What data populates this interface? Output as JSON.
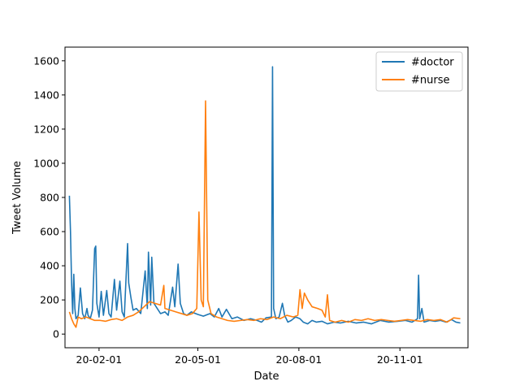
{
  "chart_data": {
    "type": "line",
    "xlabel": "Date",
    "ylabel": "Tweet Volume",
    "xlim": [
      "2020-01-01",
      "2021-01-02"
    ],
    "ylim": [
      -80,
      1680
    ],
    "x_ticks": [
      {
        "date": "2020-02-01",
        "label": "20-02-01"
      },
      {
        "date": "2020-05-01",
        "label": "20-05-01"
      },
      {
        "date": "2020-08-01",
        "label": "20-08-01"
      },
      {
        "date": "2020-11-01",
        "label": "20-11-01"
      }
    ],
    "y_ticks": [
      0,
      200,
      400,
      600,
      800,
      1000,
      1200,
      1400,
      1600
    ],
    "legend_position": "top-right",
    "grid": false,
    "series": [
      {
        "name": "#doctor",
        "color": "#1f77b4",
        "points": [
          [
            "2020-01-05",
            810
          ],
          [
            "2020-01-06",
            600
          ],
          [
            "2020-01-07",
            300
          ],
          [
            "2020-01-08",
            120
          ],
          [
            "2020-01-09",
            350
          ],
          [
            "2020-01-10",
            150
          ],
          [
            "2020-01-11",
            90
          ],
          [
            "2020-01-13",
            110
          ],
          [
            "2020-01-15",
            270
          ],
          [
            "2020-01-17",
            120
          ],
          [
            "2020-01-19",
            90
          ],
          [
            "2020-01-21",
            150
          ],
          [
            "2020-01-22",
            110
          ],
          [
            "2020-01-24",
            90
          ],
          [
            "2020-01-26",
            140
          ],
          [
            "2020-01-28",
            500
          ],
          [
            "2020-01-29",
            515
          ],
          [
            "2020-01-30",
            180
          ],
          [
            "2020-02-01",
            100
          ],
          [
            "2020-02-03",
            250
          ],
          [
            "2020-02-05",
            110
          ],
          [
            "2020-02-08",
            255
          ],
          [
            "2020-02-10",
            120
          ],
          [
            "2020-02-12",
            100
          ],
          [
            "2020-02-15",
            320
          ],
          [
            "2020-02-17",
            140
          ],
          [
            "2020-02-20",
            310
          ],
          [
            "2020-02-22",
            130
          ],
          [
            "2020-02-24",
            100
          ],
          [
            "2020-02-27",
            530
          ],
          [
            "2020-02-28",
            300
          ],
          [
            "2020-03-01",
            215
          ],
          [
            "2020-03-03",
            140
          ],
          [
            "2020-03-06",
            150
          ],
          [
            "2020-03-10",
            120
          ],
          [
            "2020-03-14",
            370
          ],
          [
            "2020-03-16",
            150
          ],
          [
            "2020-03-17",
            480
          ],
          [
            "2020-03-19",
            170
          ],
          [
            "2020-03-20",
            450
          ],
          [
            "2020-03-22",
            180
          ],
          [
            "2020-03-25",
            150
          ],
          [
            "2020-03-28",
            120
          ],
          [
            "2020-04-01",
            130
          ],
          [
            "2020-04-04",
            110
          ],
          [
            "2020-04-08",
            275
          ],
          [
            "2020-04-10",
            160
          ],
          [
            "2020-04-13",
            410
          ],
          [
            "2020-04-15",
            180
          ],
          [
            "2020-04-18",
            120
          ],
          [
            "2020-04-21",
            110
          ],
          [
            "2020-04-25",
            130
          ],
          [
            "2020-05-01",
            115
          ],
          [
            "2020-05-06",
            105
          ],
          [
            "2020-05-12",
            120
          ],
          [
            "2020-05-16",
            100
          ],
          [
            "2020-05-20",
            150
          ],
          [
            "2020-05-23",
            100
          ],
          [
            "2020-05-27",
            145
          ],
          [
            "2020-06-01",
            90
          ],
          [
            "2020-06-06",
            100
          ],
          [
            "2020-06-12",
            80
          ],
          [
            "2020-06-18",
            90
          ],
          [
            "2020-06-24",
            80
          ],
          [
            "2020-06-28",
            70
          ],
          [
            "2020-07-02",
            95
          ],
          [
            "2020-07-07",
            100
          ],
          [
            "2020-07-08",
            1565
          ],
          [
            "2020-07-09",
            150
          ],
          [
            "2020-07-11",
            90
          ],
          [
            "2020-07-14",
            100
          ],
          [
            "2020-07-17",
            180
          ],
          [
            "2020-07-19",
            110
          ],
          [
            "2020-07-22",
            70
          ],
          [
            "2020-07-25",
            80
          ],
          [
            "2020-07-29",
            100
          ],
          [
            "2020-08-02",
            90
          ],
          [
            "2020-08-05",
            70
          ],
          [
            "2020-08-09",
            60
          ],
          [
            "2020-08-13",
            80
          ],
          [
            "2020-08-17",
            70
          ],
          [
            "2020-08-22",
            75
          ],
          [
            "2020-08-27",
            60
          ],
          [
            "2020-09-02",
            70
          ],
          [
            "2020-09-08",
            65
          ],
          [
            "2020-09-15",
            75
          ],
          [
            "2020-09-22",
            65
          ],
          [
            "2020-09-29",
            70
          ],
          [
            "2020-10-06",
            60
          ],
          [
            "2020-10-14",
            80
          ],
          [
            "2020-10-22",
            70
          ],
          [
            "2020-10-30",
            75
          ],
          [
            "2020-11-06",
            80
          ],
          [
            "2020-11-12",
            70
          ],
          [
            "2020-11-17",
            90
          ],
          [
            "2020-11-18",
            345
          ],
          [
            "2020-11-19",
            90
          ],
          [
            "2020-11-21",
            150
          ],
          [
            "2020-11-23",
            70
          ],
          [
            "2020-11-28",
            80
          ],
          [
            "2020-12-03",
            75
          ],
          [
            "2020-12-08",
            80
          ],
          [
            "2020-12-13",
            70
          ],
          [
            "2020-12-18",
            85
          ],
          [
            "2020-12-22",
            70
          ],
          [
            "2020-12-26",
            65
          ]
        ]
      },
      {
        "name": "#nurse",
        "color": "#ff7f0e",
        "points": [
          [
            "2020-01-05",
            130
          ],
          [
            "2020-01-07",
            90
          ],
          [
            "2020-01-09",
            60
          ],
          [
            "2020-01-11",
            40
          ],
          [
            "2020-01-13",
            100
          ],
          [
            "2020-01-16",
            90
          ],
          [
            "2020-01-20",
            100
          ],
          [
            "2020-01-24",
            90
          ],
          [
            "2020-01-28",
            80
          ],
          [
            "2020-02-02",
            80
          ],
          [
            "2020-02-07",
            75
          ],
          [
            "2020-02-12",
            85
          ],
          [
            "2020-02-17",
            90
          ],
          [
            "2020-02-22",
            80
          ],
          [
            "2020-02-27",
            100
          ],
          [
            "2020-03-03",
            110
          ],
          [
            "2020-03-08",
            130
          ],
          [
            "2020-03-13",
            160
          ],
          [
            "2020-03-18",
            190
          ],
          [
            "2020-03-23",
            180
          ],
          [
            "2020-03-28",
            170
          ],
          [
            "2020-03-31",
            285
          ],
          [
            "2020-04-01",
            150
          ],
          [
            "2020-04-06",
            140
          ],
          [
            "2020-04-11",
            130
          ],
          [
            "2020-04-16",
            120
          ],
          [
            "2020-04-21",
            110
          ],
          [
            "2020-04-26",
            120
          ],
          [
            "2020-04-30",
            150
          ],
          [
            "2020-05-02",
            715
          ],
          [
            "2020-05-04",
            200
          ],
          [
            "2020-05-06",
            160
          ],
          [
            "2020-05-08",
            1365
          ],
          [
            "2020-05-10",
            200
          ],
          [
            "2020-05-13",
            120
          ],
          [
            "2020-05-18",
            100
          ],
          [
            "2020-05-23",
            90
          ],
          [
            "2020-05-28",
            80
          ],
          [
            "2020-06-03",
            75
          ],
          [
            "2020-06-09",
            80
          ],
          [
            "2020-06-15",
            85
          ],
          [
            "2020-06-21",
            80
          ],
          [
            "2020-06-27",
            90
          ],
          [
            "2020-07-03",
            85
          ],
          [
            "2020-07-09",
            100
          ],
          [
            "2020-07-15",
            90
          ],
          [
            "2020-07-21",
            110
          ],
          [
            "2020-07-27",
            100
          ],
          [
            "2020-07-31",
            110
          ],
          [
            "2020-08-02",
            260
          ],
          [
            "2020-08-04",
            150
          ],
          [
            "2020-08-06",
            240
          ],
          [
            "2020-08-09",
            200
          ],
          [
            "2020-08-13",
            160
          ],
          [
            "2020-08-18",
            150
          ],
          [
            "2020-08-22",
            140
          ],
          [
            "2020-08-25",
            100
          ],
          [
            "2020-08-27",
            230
          ],
          [
            "2020-08-29",
            80
          ],
          [
            "2020-09-03",
            70
          ],
          [
            "2020-09-09",
            80
          ],
          [
            "2020-09-15",
            70
          ],
          [
            "2020-09-21",
            85
          ],
          [
            "2020-09-27",
            80
          ],
          [
            "2020-10-03",
            90
          ],
          [
            "2020-10-09",
            80
          ],
          [
            "2020-10-15",
            85
          ],
          [
            "2020-10-21",
            80
          ],
          [
            "2020-10-27",
            75
          ],
          [
            "2020-11-02",
            80
          ],
          [
            "2020-11-08",
            85
          ],
          [
            "2020-11-14",
            80
          ],
          [
            "2020-11-20",
            75
          ],
          [
            "2020-11-26",
            85
          ],
          [
            "2020-12-02",
            80
          ],
          [
            "2020-12-08",
            85
          ],
          [
            "2020-12-14",
            70
          ],
          [
            "2020-12-20",
            95
          ],
          [
            "2020-12-26",
            90
          ]
        ]
      }
    ]
  }
}
